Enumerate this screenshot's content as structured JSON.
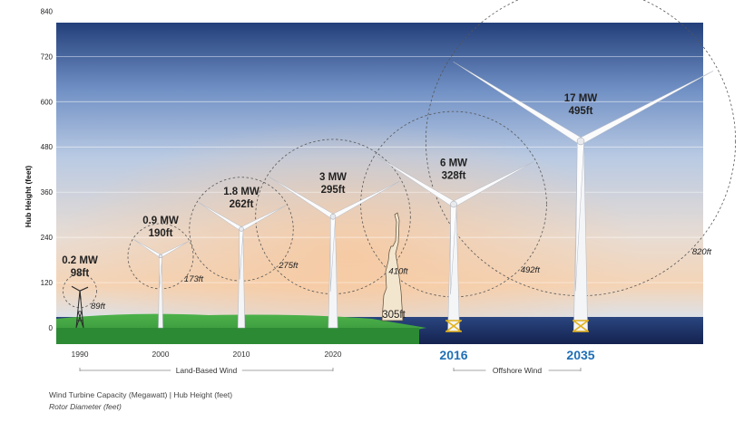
{
  "chart_data": {
    "type": "scatter",
    "ylabel": "Hub Height (feet)",
    "y_ticks": [
      0,
      120,
      240,
      360,
      480,
      600,
      720,
      840
    ],
    "ylim": [
      -30,
      1010
    ],
    "turbines": [
      {
        "year": "1990",
        "capacity": "0.2 MW",
        "hub_height_ft": 98,
        "hub_label": "98ft",
        "rotor_diameter_ft": 89,
        "rotor_label": "89ft",
        "type": "land",
        "highlight": false
      },
      {
        "year": "2000",
        "capacity": "0.9 MW",
        "hub_height_ft": 190,
        "hub_label": "190ft",
        "rotor_diameter_ft": 173,
        "rotor_label": "173ft",
        "type": "land",
        "highlight": false
      },
      {
        "year": "2010",
        "capacity": "1.8 MW",
        "hub_height_ft": 262,
        "hub_label": "262ft",
        "rotor_diameter_ft": 275,
        "rotor_label": "275ft",
        "type": "land",
        "highlight": false
      },
      {
        "year": "2020",
        "capacity": "3 MW",
        "hub_height_ft": 295,
        "hub_label": "295ft",
        "rotor_diameter_ft": 410,
        "rotor_label": "410ft",
        "type": "land",
        "highlight": false
      },
      {
        "year": "2016",
        "capacity": "6 MW",
        "hub_height_ft": 328,
        "hub_label": "328ft",
        "rotor_diameter_ft": 492,
        "rotor_label": "492ft",
        "type": "offshore",
        "highlight": true
      },
      {
        "year": "2035",
        "capacity": "17 MW",
        "hub_height_ft": 495,
        "hub_label": "495ft",
        "rotor_diameter_ft": 820,
        "rotor_label": "820ft",
        "type": "offshore",
        "highlight": true
      }
    ],
    "reference": {
      "label": "305ft",
      "height_ft": 305
    },
    "groups": [
      {
        "label": "Land-Based Wind",
        "from": 0,
        "to": 3
      },
      {
        "label": "Offshore Wind",
        "from": 4,
        "to": 5
      }
    ],
    "footnote_capacity": "Wind Turbine Capacity (Megawatt) | Hub Height (feet)",
    "footnote_rotor": "Rotor Diameter (feet)",
    "colors": {
      "accent": "#1f6fb5",
      "land": "#3c9a3f",
      "sea": "#1b2f66",
      "sky_top": "#233f7a",
      "sky_glow": "#f6cfa6"
    }
  }
}
